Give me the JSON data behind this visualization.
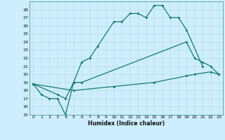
{
  "xlabel": "Humidex (Indice chaleur)",
  "bg_color": "#cceeff",
  "line_color": "#1a7a6e",
  "grid_color": "#aadddd",
  "xlim": [
    -0.5,
    23.5
  ],
  "ylim": [
    15,
    29
  ],
  "yticks": [
    15,
    16,
    17,
    18,
    19,
    20,
    21,
    22,
    23,
    24,
    25,
    26,
    27,
    28
  ],
  "xticks": [
    0,
    1,
    2,
    3,
    4,
    5,
    6,
    7,
    8,
    9,
    10,
    11,
    12,
    13,
    14,
    15,
    16,
    17,
    18,
    19,
    20,
    21,
    22,
    23
  ],
  "s1x": [
    0,
    1,
    2,
    3,
    4,
    5,
    6,
    7,
    8,
    10,
    11,
    12,
    13,
    14,
    15,
    16,
    17,
    18,
    19,
    21
  ],
  "s1y": [
    18.8,
    17.5,
    17.0,
    17.0,
    15.0,
    19.0,
    21.5,
    22.0,
    23.5,
    26.5,
    26.5,
    27.5,
    27.5,
    27.0,
    28.5,
    28.5,
    27.0,
    27.0,
    25.5,
    21.0
  ],
  "s2x": [
    0,
    3,
    4,
    5,
    6,
    19,
    20,
    21,
    22,
    23
  ],
  "s2y": [
    18.8,
    17.5,
    17.0,
    19.0,
    19.0,
    24.0,
    22.0,
    21.5,
    21.0,
    20.0
  ],
  "s3x": [
    0,
    5,
    10,
    15,
    19,
    20,
    22,
    23
  ],
  "s3y": [
    18.8,
    18.0,
    18.5,
    19.0,
    19.8,
    20.0,
    20.3,
    20.0
  ]
}
